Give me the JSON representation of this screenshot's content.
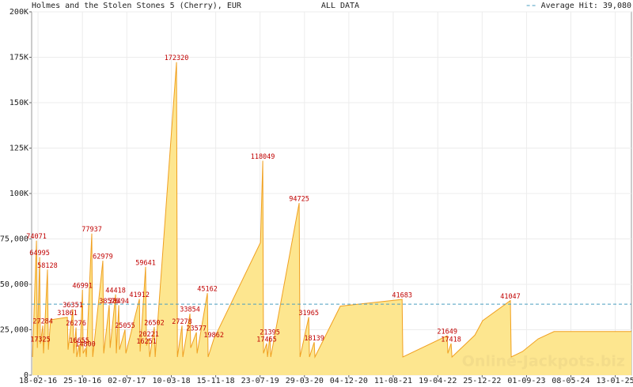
{
  "chart_data": {
    "type": "area",
    "title": "Holmes and the Stolen Stones 5 (Cherry), EUR",
    "subtitle": "ALL DATA",
    "watermark": "Online-Jackpots.biz",
    "average": {
      "value": 39080,
      "label": "Average Hit: 39,080",
      "color": "#4a9fc0"
    },
    "color": "#f0a020",
    "fill_color": "#fde68f",
    "label_color": "#c00000",
    "grid": true,
    "xlim": [
      "2016-01-13",
      "2025-04-14"
    ],
    "xticks": [
      {
        "value": "2016-02-18",
        "label": "18-02-16"
      },
      {
        "value": "2016-10-25",
        "label": "25-10-16"
      },
      {
        "value": "2017-07-02",
        "label": "02-07-17"
      },
      {
        "value": "2018-03-10",
        "label": "10-03-18"
      },
      {
        "value": "2018-11-15",
        "label": "15-11-18"
      },
      {
        "value": "2019-07-23",
        "label": "23-07-19"
      },
      {
        "value": "2020-03-29",
        "label": "29-03-20"
      },
      {
        "value": "2020-12-04",
        "label": "04-12-20"
      },
      {
        "value": "2021-08-11",
        "label": "11-08-21"
      },
      {
        "value": "2022-04-19",
        "label": "19-04-22"
      },
      {
        "value": "2022-12-25",
        "label": "25-12-22"
      },
      {
        "value": "2023-09-01",
        "label": "01-09-23"
      },
      {
        "value": "2024-05-08",
        "label": "08-05-24"
      },
      {
        "value": "2025-01-13",
        "label": "13-01-25"
      }
    ],
    "ylim": [
      0,
      200000
    ],
    "yticks": [
      0,
      {
        "value": 25000,
        "label": "25,000"
      },
      {
        "value": 50000,
        "label": "50,000"
      },
      {
        "value": 75000,
        "label": "75,000"
      },
      {
        "value": 100000,
        "label": "100K"
      },
      {
        "value": 125000,
        "label": "125K"
      },
      {
        "value": 150000,
        "label": "150K"
      },
      {
        "value": 175000,
        "label": "175K"
      },
      {
        "value": 200000,
        "label": "200K"
      }
    ],
    "x": [
      "2016-01-18",
      "2016-02-09",
      "2016-02-14",
      "2016-02-27",
      "2016-03-02",
      "2016-03-16",
      "2016-03-20",
      "2016-04-11",
      "2016-04-16",
      "2016-04-29",
      "2016-08-01",
      "2016-08-05",
      "2016-09-01",
      "2016-09-06",
      "2016-09-19",
      "2016-09-23",
      "2016-10-07",
      "2016-10-11",
      "2016-10-25",
      "2016-10-29",
      "2016-11-11",
      "2016-11-16",
      "2016-12-17",
      "2016-12-22",
      "2017-02-17",
      "2017-02-22",
      "2017-03-25",
      "2017-03-30",
      "2017-04-30",
      "2017-05-04",
      "2017-05-18",
      "2017-05-22",
      "2017-06-22",
      "2017-06-27",
      "2017-09-11",
      "2017-09-15",
      "2017-10-16",
      "2017-10-21",
      "2017-11-03",
      "2017-11-08",
      "2017-12-04",
      "2017-12-09",
      "2018-04-08",
      "2018-04-13",
      "2018-05-09",
      "2018-05-14",
      "2018-06-23",
      "2018-06-27",
      "2018-07-29",
      "2018-08-02",
      "2018-09-29",
      "2018-10-03",
      "2018-11-04",
      "2019-07-25",
      "2019-08-07",
      "2019-08-11",
      "2019-08-29",
      "2019-09-03",
      "2019-09-16",
      "2019-09-21",
      "2020-02-28",
      "2020-03-04",
      "2020-04-22",
      "2020-04-26",
      "2020-05-23",
      "2020-05-27",
      "2020-10-17",
      "2021-09-30",
      "2021-10-04",
      "2022-06-11",
      "2022-06-15",
      "2022-07-03",
      "2022-07-08",
      "2022-11-14",
      "2022-12-28",
      "2023-06-02",
      "2023-06-07",
      "2023-08-09",
      "2023-11-06",
      "2024-02-03",
      "2025-04-14"
    ],
    "values": [
      10000,
      74071,
      15000,
      64995,
      17325,
      27284,
      12000,
      58128,
      14000,
      30500,
      31861,
      14000,
      36351,
      12000,
      26276,
      10000,
      16655,
      10000,
      46991,
      12000,
      14800,
      10000,
      77937,
      10000,
      62979,
      12000,
      38576,
      15000,
      44418,
      12000,
      38494,
      14000,
      25055,
      12000,
      41912,
      13000,
      59641,
      16251,
      20221,
      10000,
      26502,
      10000,
      172320,
      10000,
      27278,
      10000,
      33854,
      15000,
      23577,
      12000,
      45162,
      10000,
      19862,
      73000,
      118049,
      12000,
      17465,
      10000,
      21395,
      10000,
      94725,
      10000,
      31965,
      10000,
      18139,
      10000,
      38000,
      41683,
      10000,
      21649,
      12000,
      17418,
      10000,
      22000,
      30000,
      41047,
      10000,
      13000,
      20000,
      24000,
      24000
    ],
    "value_labels": [
      null,
      "74071",
      null,
      "64995",
      "17325",
      "27284",
      null,
      "58128",
      null,
      null,
      "31861",
      null,
      "36351",
      null,
      "26276",
      null,
      "16655",
      null,
      "46991",
      null,
      "14800",
      null,
      "77937",
      null,
      "62979",
      null,
      "38576",
      null,
      "44418",
      null,
      "38494",
      null,
      "25055",
      null,
      "41912",
      null,
      "59641",
      "16251",
      "20221",
      null,
      "26502",
      null,
      "172320",
      null,
      "27278",
      null,
      "33854",
      null,
      "23577",
      null,
      "45162",
      null,
      "19862",
      null,
      "118049",
      null,
      "17465",
      null,
      "21395",
      null,
      "94725",
      null,
      "31965",
      null,
      "18139",
      null,
      null,
      "41683",
      null,
      "21649",
      null,
      "17418",
      null,
      null,
      null,
      "41047",
      null,
      null,
      null,
      null,
      null
    ]
  }
}
